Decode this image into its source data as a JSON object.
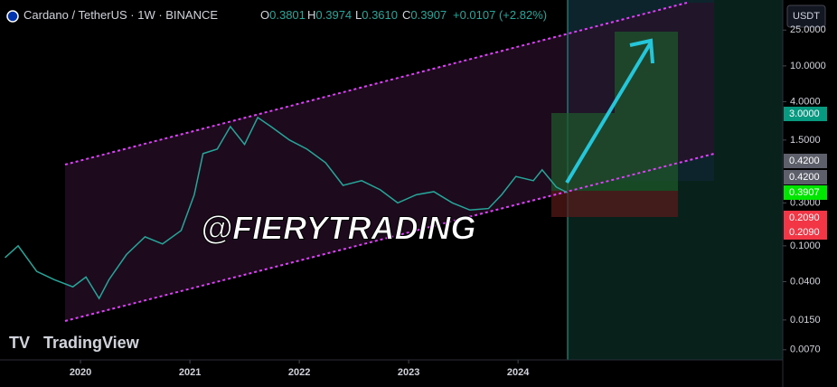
{
  "chart_data": {
    "type": "line",
    "log_scale": true,
    "header": {
      "symbol": "Cardano / TetherUS · 1W · BINANCE",
      "o_label": "O",
      "open": "0.3801",
      "h_label": "H",
      "high": "0.3974",
      "l_label": "L",
      "low": "0.3610",
      "c_label": "C",
      "close": "0.3907",
      "change": "+0.0107 (+2.82%)"
    },
    "watermark": "@FIERYTRADING",
    "brand": "TradingView",
    "currency": "USDT",
    "x": [
      2019.31,
      2019.43,
      2019.6,
      2019.76,
      2019.93,
      2020.05,
      2020.17,
      2020.26,
      2020.42,
      2020.59,
      2020.75,
      2020.92,
      2021.04,
      2021.12,
      2021.25,
      2021.37,
      2021.5,
      2021.62,
      2021.74,
      2021.91,
      2022.07,
      2022.24,
      2022.4,
      2022.57,
      2022.74,
      2022.9,
      2023.07,
      2023.23,
      2023.4,
      2023.56,
      2023.73,
      2023.85,
      2023.98,
      2024.14,
      2024.22,
      2024.35,
      2024.45
    ],
    "values": [
      0.074,
      0.1,
      0.052,
      0.042,
      0.035,
      0.045,
      0.026,
      0.042,
      0.08,
      0.126,
      0.105,
      0.148,
      0.37,
      1.06,
      1.19,
      2.12,
      1.34,
      2.67,
      2.12,
      1.5,
      1.19,
      0.84,
      0.47,
      0.53,
      0.42,
      0.3,
      0.37,
      0.4,
      0.3,
      0.25,
      0.26,
      0.37,
      0.59,
      0.53,
      0.7,
      0.45,
      0.3907
    ],
    "color": "#26a69a",
    "xlim": [
      2019.264,
      2026.42
    ],
    "xticks": [
      2020,
      2021,
      2022,
      2023,
      2024
    ],
    "ylim": [
      0.0054,
      54
    ],
    "yticks": [
      {
        "value": 25,
        "label": "25.0000"
      },
      {
        "value": 10,
        "label": "10.0000"
      },
      {
        "value": 4,
        "label": "4.0000"
      },
      {
        "value": 1.5,
        "label": "1.5000"
      },
      {
        "value": 0.3,
        "label": "0.3000"
      },
      {
        "value": 0.1,
        "label": "0.1000"
      },
      {
        "value": 0.04,
        "label": "0.0400"
      },
      {
        "value": 0.015,
        "label": "0.0150"
      },
      {
        "value": 0.007,
        "label": "0.0070"
      }
    ],
    "price_labels": [
      {
        "label": "3.0000",
        "color": "#089981"
      },
      {
        "label": "0.4200",
        "color": "#5d606b"
      },
      {
        "label": "0.4200",
        "color": "#5d606b"
      },
      {
        "label": "0.3907",
        "color": "#00e600"
      },
      {
        "label": "0.2090",
        "color": "#f23645"
      },
      {
        "label": "0.2090",
        "color": "#f23645"
      }
    ]
  }
}
